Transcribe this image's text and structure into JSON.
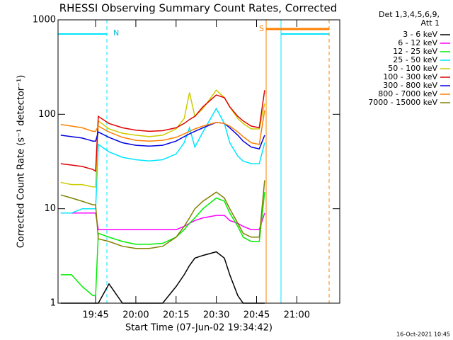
{
  "chart_data": {
    "type": "line",
    "title": "RHESSI Observing Summary Count Rates, Corrected",
    "xlabel": "Start Time (07-Jun-02 19:34:42)",
    "ylabel": "Corrected Count Rate (s⁻¹ detector⁻¹)",
    "legend_title": [
      "Det 1,3,4,5,6,9,",
      "Att 1"
    ],
    "footer": "16-Oct-2021 10:45",
    "annotations": [
      "N",
      "S"
    ],
    "log_y": true,
    "legend": "outside-right",
    "xlim": [
      91,
      196
    ],
    "xticks": [
      {
        "value": 105,
        "label": "19:45"
      },
      {
        "value": 120,
        "label": "20:00"
      },
      {
        "value": 135,
        "label": "20:15"
      },
      {
        "value": 150,
        "label": "20:30"
      },
      {
        "value": 165,
        "label": "20:45"
      },
      {
        "value": 180,
        "label": "21:00"
      }
    ],
    "ylim": [
      1,
      1000
    ],
    "yticks": [
      1,
      10,
      100,
      1000
    ],
    "x": [
      92,
      96,
      100,
      104,
      105,
      106,
      110,
      115,
      120,
      125,
      130,
      135,
      138,
      140,
      142,
      145,
      150,
      153,
      155,
      158,
      160,
      163,
      166,
      168
    ],
    "series": [
      {
        "name": "3 - 6 keV",
        "color": "#000000",
        "values": [
          1,
          1,
          1,
          1,
          1,
          1,
          1.6,
          1,
          1,
          1,
          1,
          1.5,
          2,
          2.5,
          3,
          3.2,
          3.5,
          3,
          2,
          1.2,
          1,
          1,
          1,
          1
        ]
      },
      {
        "name": "6 - 12 keV",
        "color": "#ff00ff",
        "values": [
          9,
          9,
          9,
          9,
          9,
          6,
          6,
          6,
          6,
          6,
          6,
          6,
          6.5,
          7,
          7.5,
          8,
          8.5,
          8.5,
          7.5,
          7,
          6.5,
          6,
          6,
          9
        ]
      },
      {
        "name": "12 - 25 keV",
        "color": "#00ee00",
        "values": [
          2,
          2,
          1.5,
          1.2,
          1.2,
          5.5,
          5,
          4.5,
          4.2,
          4.2,
          4.3,
          5,
          6,
          7,
          8,
          10,
          13,
          12,
          9,
          6.5,
          5,
          4.5,
          4.5,
          15
        ]
      },
      {
        "name": "25 - 50 keV",
        "color": "#00e5ff",
        "values": [
          9,
          9,
          10,
          10,
          10,
          48,
          40,
          35,
          33,
          32,
          33,
          38,
          50,
          72,
          45,
          65,
          115,
          80,
          50,
          36,
          32,
          30,
          30,
          50
        ]
      },
      {
        "name": "50 - 100 keV",
        "color": "#cccc00",
        "values": [
          19,
          18,
          18,
          17,
          17,
          85,
          70,
          63,
          60,
          58,
          60,
          70,
          90,
          170,
          95,
          115,
          180,
          150,
          120,
          90,
          80,
          70,
          70,
          130
        ]
      },
      {
        "name": "100 - 300 keV",
        "color": "#e00000",
        "values": [
          30,
          29,
          28,
          26,
          25,
          95,
          80,
          72,
          68,
          66,
          67,
          72,
          80,
          88,
          95,
          120,
          160,
          150,
          120,
          95,
          85,
          75,
          72,
          180
        ]
      },
      {
        "name": "300 - 800 keV",
        "color": "#0000e0",
        "values": [
          60,
          58,
          56,
          52,
          52,
          65,
          57,
          50,
          47,
          46,
          47,
          52,
          58,
          62,
          66,
          72,
          82,
          80,
          72,
          60,
          52,
          45,
          43,
          60
        ]
      },
      {
        "name": "800 - 7000 keV",
        "color": "#ff8000",
        "values": [
          78,
          75,
          72,
          66,
          66,
          75,
          65,
          57,
          53,
          52,
          53,
          57,
          62,
          66,
          70,
          75,
          82,
          80,
          75,
          65,
          58,
          50,
          48,
          110
        ]
      },
      {
        "name": "7000 - 15000 keV",
        "color": "#808000",
        "values": [
          14,
          13,
          12,
          11,
          11,
          4.8,
          4.5,
          4,
          3.8,
          3.8,
          4,
          5,
          6.5,
          8,
          10,
          12,
          15,
          13,
          10,
          7,
          5.5,
          5,
          5,
          20
        ]
      }
    ]
  }
}
